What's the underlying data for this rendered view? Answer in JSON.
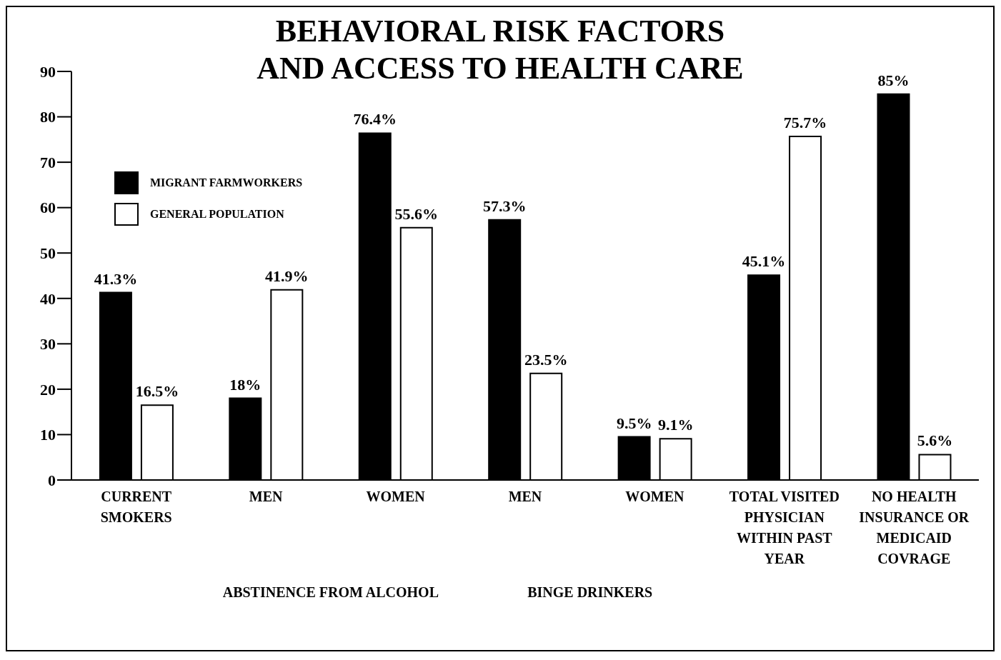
{
  "chart_data": {
    "type": "bar",
    "title": "BEHAVIORAL RISK FACTORS\nAND ACCESS TO HEALTH CARE",
    "categories": [
      "CURRENT SMOKERS",
      "MEN",
      "WOMEN",
      "MEN",
      "WOMEN",
      "TOTAL VISITED PHYSICIAN WITHIN PAST YEAR",
      "NO HEALTH INSURANCE OR MEDICAID COVRAGE"
    ],
    "annotations": [
      "ABSTINENCE FROM ALCOHOL",
      "BINGE DRINKERS"
    ],
    "series": [
      {
        "name": "MIGRANT FARMWORKERS",
        "color": "#000000",
        "values": [
          41.3,
          18,
          76.4,
          57.3,
          9.5,
          45.1,
          85
        ],
        "value_labels": [
          "41.3%",
          "18%",
          "76.4%",
          "57.3%",
          "9.5%",
          "45.1%",
          "85%"
        ]
      },
      {
        "name": "GENERAL POPULATION",
        "color": "#ffffff",
        "values": [
          16.5,
          41.9,
          55.6,
          23.5,
          9.1,
          75.7,
          5.6
        ],
        "value_labels": [
          "16.5%",
          "41.9%",
          "55.6%",
          "23.5%",
          "9.1%",
          "75.7%",
          "5.6%"
        ]
      }
    ],
    "ylim": [
      0,
      90
    ],
    "yticks": [
      0,
      10,
      20,
      30,
      40,
      50,
      60,
      70,
      80,
      90
    ],
    "grid": false,
    "legend": "top left"
  }
}
